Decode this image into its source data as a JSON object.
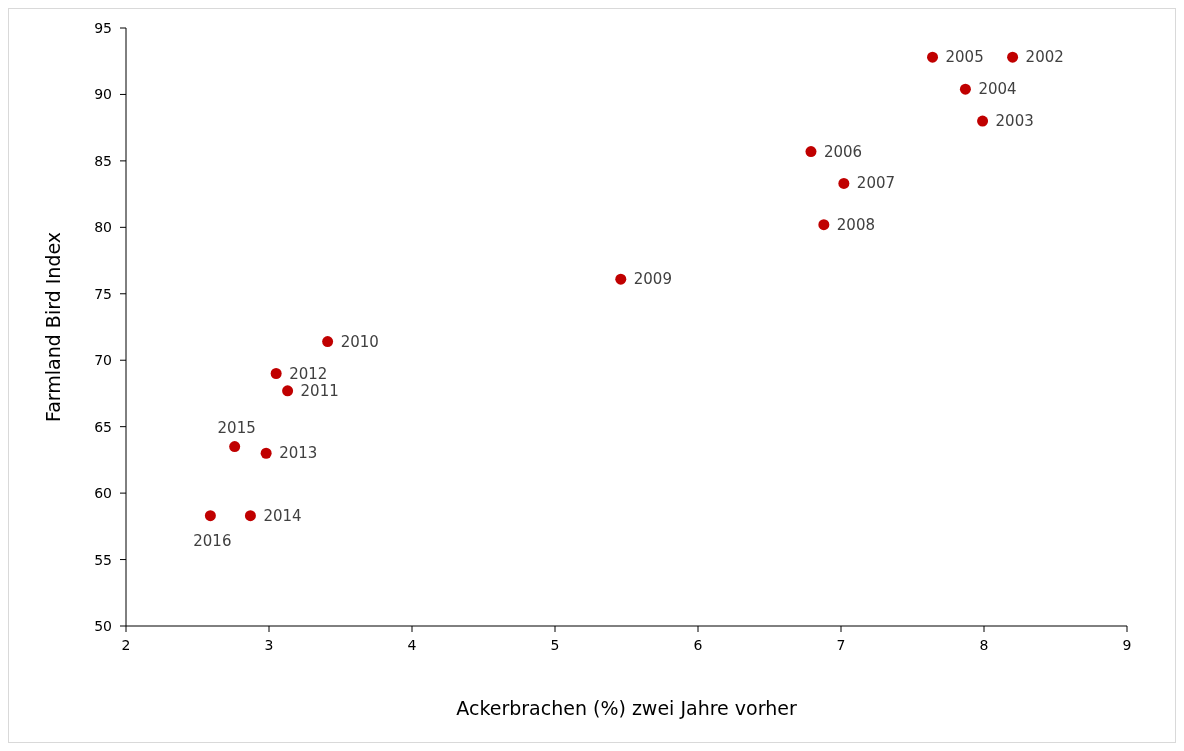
{
  "chart_data": {
    "type": "scatter",
    "xlabel": "Ackerbrachen (%) zwei Jahre vorher",
    "ylabel": "Farmland Bird Index",
    "xlim": [
      2,
      9
    ],
    "xticks": [
      2,
      3,
      4,
      5,
      6,
      7,
      8,
      9
    ],
    "ylim": [
      50,
      95
    ],
    "yticks": [
      50,
      55,
      60,
      65,
      70,
      75,
      80,
      85,
      90,
      95
    ],
    "grid": false,
    "marker": "circle",
    "series": [
      {
        "color": "#c00000",
        "x": [
          8.2,
          7.99,
          7.87,
          7.64,
          6.79,
          7.02,
          6.88,
          5.46,
          3.41,
          3.13,
          3.05,
          2.98,
          2.87,
          2.76,
          2.59
        ],
        "values": [
          92.8,
          88.0,
          90.4,
          92.8,
          85.7,
          83.3,
          80.2,
          76.1,
          71.4,
          67.7,
          69.0,
          63.0,
          58.3,
          63.5,
          58.3
        ]
      }
    ],
    "annotations": [
      {
        "text": "2002",
        "x": 8.2,
        "y": 92.8
      },
      {
        "text": "2003",
        "x": 7.99,
        "y": 88.0
      },
      {
        "text": "2004",
        "x": 7.87,
        "y": 90.4
      },
      {
        "text": "2005",
        "x": 7.64,
        "y": 92.8
      },
      {
        "text": "2006",
        "x": 6.79,
        "y": 85.7
      },
      {
        "text": "2007",
        "x": 7.02,
        "y": 83.3
      },
      {
        "text": "2008",
        "x": 6.88,
        "y": 80.2
      },
      {
        "text": "2009",
        "x": 5.46,
        "y": 76.1
      },
      {
        "text": "2010",
        "x": 3.41,
        "y": 71.4
      },
      {
        "text": "2011",
        "x": 3.13,
        "y": 67.7
      },
      {
        "text": "2012",
        "x": 3.05,
        "y": 69.0
      },
      {
        "text": "2013",
        "x": 2.98,
        "y": 63.0
      },
      {
        "text": "2014",
        "x": 2.87,
        "y": 58.3
      },
      {
        "text": "2015",
        "x": 2.76,
        "y": 63.5
      },
      {
        "text": "2016",
        "x": 2.59,
        "y": 58.3
      }
    ]
  }
}
